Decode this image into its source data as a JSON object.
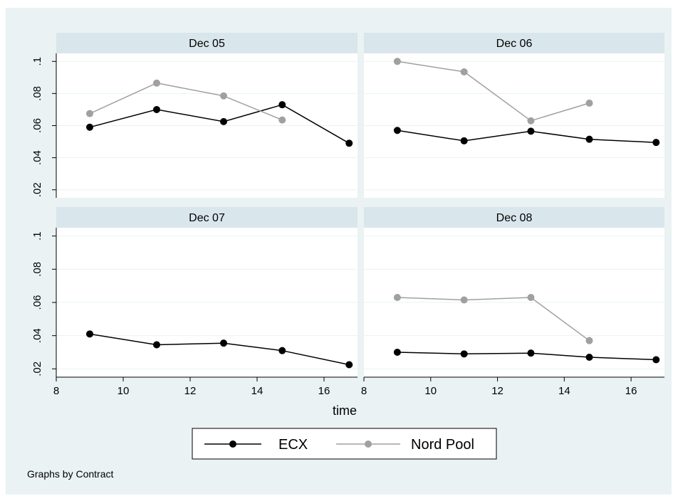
{
  "chart_data": {
    "type": "line",
    "panel_type": "small-multiples",
    "xlabel": "time",
    "ylabel": "",
    "xlim": [
      8,
      17
    ],
    "ylim": [
      0.015,
      0.105
    ],
    "xticks": [
      "8",
      "10",
      "12",
      "14",
      "16"
    ],
    "yticks": [
      ".02",
      ".04",
      ".06",
      ".08",
      ".1"
    ],
    "grid": true,
    "legend_position": "bottom",
    "note": "Graphs by Contract",
    "colors": {
      "outer_background": "#eaf2f3",
      "panel_background": "#ffffff",
      "strip": "#d9e6eb",
      "grid": "#eaf2f3"
    },
    "panels": [
      {
        "title": "Dec 05",
        "series": [
          {
            "name": "ECX",
            "color": "#000000",
            "x": [
              9,
              11,
              13,
              14.75,
              16.75
            ],
            "y": [
              0.059,
              0.07,
              0.0625,
              0.073,
              0.049
            ]
          },
          {
            "name": "Nord Pool",
            "color": "#a0a0a0",
            "x": [
              9,
              11,
              13,
              14.75
            ],
            "y": [
              0.0675,
              0.0865,
              0.0785,
              0.0635
            ]
          }
        ]
      },
      {
        "title": "Dec 06",
        "series": [
          {
            "name": "ECX",
            "color": "#000000",
            "x": [
              9,
              11,
              13,
              14.75,
              16.75
            ],
            "y": [
              0.057,
              0.0505,
              0.0565,
              0.0515,
              0.0495
            ]
          },
          {
            "name": "Nord Pool",
            "color": "#a0a0a0",
            "x": [
              9,
              11,
              13,
              14.75
            ],
            "y": [
              0.1,
              0.0935,
              0.063,
              0.074
            ]
          }
        ]
      },
      {
        "title": "Dec 07",
        "series": [
          {
            "name": "ECX",
            "color": "#000000",
            "x": [
              9,
              11,
              13,
              14.75,
              16.75
            ],
            "y": [
              0.041,
              0.0345,
              0.0355,
              0.031,
              0.0225
            ]
          }
        ]
      },
      {
        "title": "Dec 08",
        "series": [
          {
            "name": "ECX",
            "color": "#000000",
            "x": [
              9,
              11,
              13,
              14.75,
              16.75
            ],
            "y": [
              0.03,
              0.029,
              0.0295,
              0.027,
              0.0255
            ]
          },
          {
            "name": "Nord Pool",
            "color": "#a0a0a0",
            "x": [
              9,
              11,
              13,
              14.75
            ],
            "y": [
              0.063,
              0.0615,
              0.063,
              0.037
            ]
          }
        ]
      }
    ],
    "legend": [
      {
        "name": "ECX",
        "color": "#000000"
      },
      {
        "name": "Nord Pool",
        "color": "#a0a0a0"
      }
    ]
  }
}
